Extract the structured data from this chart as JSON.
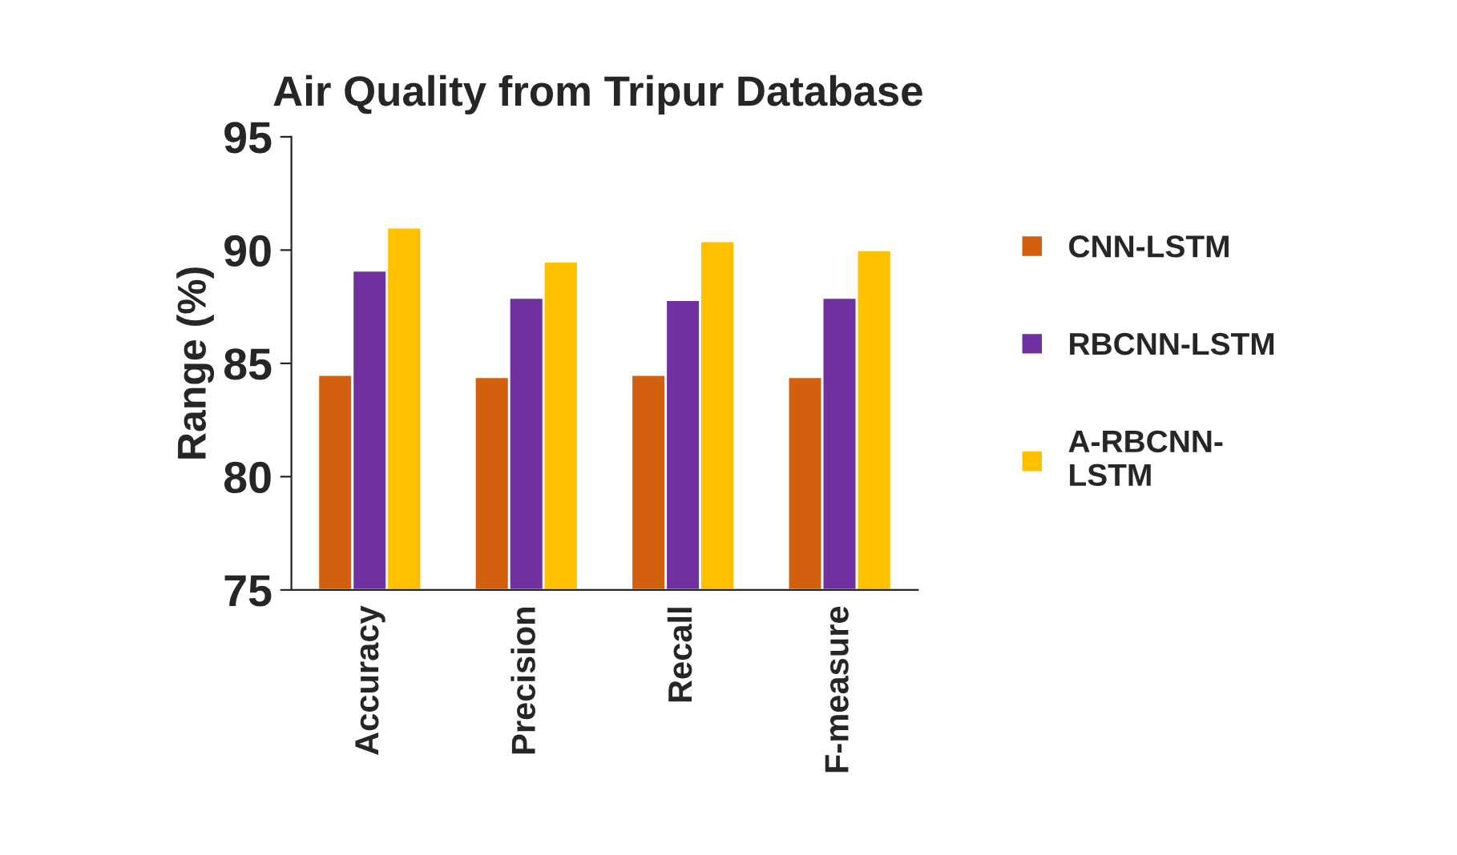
{
  "chart_data": {
    "type": "bar",
    "title": "Air Quality from Tripur Database",
    "ylabel": "Range (%)",
    "categories": [
      "Accuracy",
      "Precision",
      "Recall",
      "F-measure"
    ],
    "series": [
      {
        "name": "CNN-LSTM",
        "color": "#d2600f",
        "values": [
          84.5,
          84.4,
          84.5,
          84.4
        ]
      },
      {
        "name": "RBCNN-LSTM",
        "color": "#7030a0",
        "values": [
          89.1,
          87.9,
          87.8,
          87.9
        ]
      },
      {
        "name": "A-RBCNN-\nLSTM",
        "color": "#ffc000",
        "values": [
          91.0,
          89.5,
          90.4,
          90.0
        ]
      }
    ],
    "ylim": [
      75,
      95
    ],
    "yticks": [
      75,
      80,
      85,
      90,
      95
    ],
    "grid": false,
    "legend": "right"
  }
}
